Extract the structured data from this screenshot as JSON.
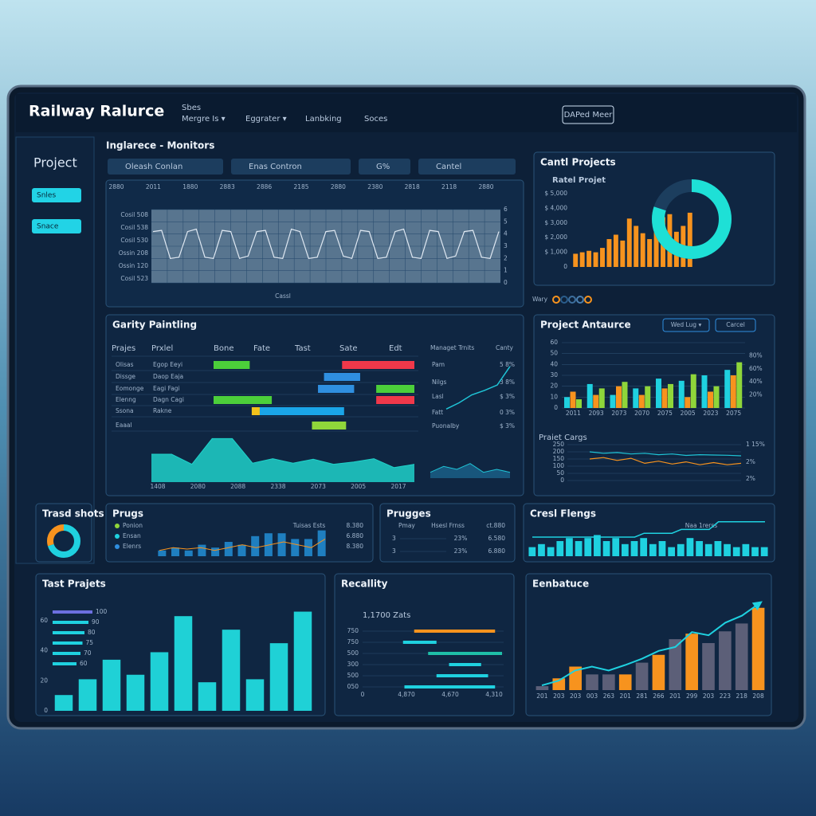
{
  "header": {
    "title": "Railway Ralurce",
    "nav": [
      "Sbes",
      "Mergre Is ▾",
      "Eggrater ▾",
      "Lanbking",
      "Soces"
    ],
    "button": "DAPed Meer"
  },
  "sidebar": {
    "title": "Project",
    "items": [
      "Snles",
      "Snace"
    ]
  },
  "monitors": {
    "title": "Inglarece - Monitors",
    "controls": [
      "Oleash Conlan",
      "Enas Contron",
      "G%",
      "Cantel"
    ],
    "top_labels": [
      "2880",
      "2011",
      "1880",
      "2883",
      "2886",
      "2185",
      "2880",
      "2380",
      "2818",
      "2118",
      "2880"
    ],
    "row_labels": [
      "Cosil 508",
      "Cosil 538",
      "Cosil 530",
      "Ossin 208",
      "Ossin 120",
      "Cosil 523"
    ],
    "x_label": "Cassl",
    "ylim": [
      0,
      6
    ],
    "yticks": [
      0,
      1,
      2,
      3,
      4,
      5,
      6
    ],
    "color": "#dfe8f2",
    "values": [
      4.2,
      4.3,
      2.0,
      2.1,
      4.2,
      4.4,
      2.1,
      2.0,
      4.3,
      4.2,
      2.0,
      2.2,
      4.2,
      4.3,
      2.1,
      2.0,
      4.4,
      4.2,
      2.0,
      2.1,
      4.2,
      4.3,
      2.2,
      2.0,
      4.3,
      4.2,
      2.0,
      2.1,
      4.2,
      4.4,
      2.1,
      2.0,
      4.3,
      4.2,
      2.0,
      2.2,
      4.2,
      4.3,
      2.1,
      2.0,
      4.2
    ]
  },
  "projects": {
    "title": "Cantl Projects",
    "subtitle": "Ratel Projet",
    "color": "#f7931e",
    "ylim": [
      0,
      5000
    ],
    "yticks": [
      0,
      {
        "value": 1000,
        "label": "$ 1,000"
      },
      {
        "value": 2000,
        "label": "$ 2,000"
      },
      {
        "value": 3000,
        "label": "$ 3,000"
      },
      {
        "value": 4000,
        "label": "$ 4,000"
      },
      {
        "value": 5000,
        "label": "$ 5,000"
      }
    ],
    "values": [
      900,
      1000,
      1100,
      1000,
      1300,
      1900,
      2200,
      1800,
      3300,
      2800,
      2300,
      1900,
      3100,
      3400,
      3600,
      2400,
      2800,
      3700
    ],
    "donut": {
      "value": 80,
      "color": "#1ee0d6",
      "track": "#1c3e5e"
    },
    "legend": {
      "label": "Wary",
      "colors": [
        "#f7931e",
        "#2a5d8c",
        "#3d6f9e",
        "#4a7fb0",
        "#f7931e"
      ]
    }
  },
  "gantt": {
    "title": "Garity Paintling",
    "columns": [
      "Prajes",
      "Prxlel",
      "Bone",
      "Fate",
      "Tast",
      "Sate",
      "Edt"
    ],
    "xlim": [
      0,
      10
    ],
    "rows": [
      {
        "name": "Olisas",
        "task": "Egop Eeyi",
        "bars": [
          {
            "start": 0,
            "end": 1.8,
            "color": "#4ccf3a"
          },
          {
            "start": 6.4,
            "end": 10,
            "color": "#f0384a"
          }
        ]
      },
      {
        "name": "Dissge",
        "task": "Daop Eaja",
        "bars": [
          {
            "start": 5.5,
            "end": 7.3,
            "color": "#2f8fe0"
          }
        ]
      },
      {
        "name": "Eomonge",
        "task": "Eagi Fagi",
        "bars": [
          {
            "start": 5.2,
            "end": 7.0,
            "color": "#2f8fe0"
          },
          {
            "start": 8.1,
            "end": 10,
            "color": "#4ccf3a"
          }
        ]
      },
      {
        "name": "Elenng",
        "task": "Dagn Cagi",
        "bars": [
          {
            "start": 0,
            "end": 2.9,
            "color": "#4ccf3a"
          },
          {
            "start": 8.1,
            "end": 10,
            "color": "#f0384a"
          }
        ]
      },
      {
        "name": "Ssona",
        "task": "Rakne",
        "bars": [
          {
            "start": 1.9,
            "end": 2.3,
            "color": "#f2c21b"
          },
          {
            "start": 2.3,
            "end": 6.5,
            "color": "#1aa5e8"
          }
        ]
      },
      {
        "name": "Eaaal",
        "bars": [
          {
            "start": 4.9,
            "end": 6.6,
            "color": "#8fd63a"
          }
        ]
      }
    ],
    "area": {
      "color": "#1fd1c9",
      "ylim": [
        0,
        10
      ],
      "values": [
        5,
        5,
        3.2,
        7.8,
        7.8,
        3.4,
        4.2,
        3.4,
        4.1,
        3.2,
        3.6,
        4.2,
        2.6,
        3.2
      ],
      "x_labels": [
        "1408",
        "2080",
        "2088",
        "2338",
        "2073",
        "2005",
        "2017"
      ]
    }
  },
  "trends": {
    "title": "Managet Trnits",
    "extra": "Canty",
    "rows": [
      {
        "name": "Pam",
        "value": "5 8%"
      },
      {
        "name": "Nilgs",
        "value": "3 8%"
      },
      {
        "name": "Lasl",
        "value": "$ 3%"
      },
      {
        "name": "Fatt",
        "value": "0 3%"
      },
      {
        "name": "Puonalby",
        "value": "$ 3%"
      }
    ],
    "line": {
      "color": "#1fc4d6",
      "ylim": [
        0,
        7
      ],
      "values": [
        1.5,
        2.2,
        3.1,
        3.6,
        4.2,
        6.3
      ]
    },
    "mini": {
      "color": "#1fc4d6",
      "ylim": [
        0,
        6
      ],
      "values": [
        2,
        4,
        3,
        5,
        2,
        3,
        2
      ]
    }
  },
  "antaurce": {
    "title": "Project Antaurce",
    "controls": [
      "Wed Lug ▾",
      "Carcel"
    ],
    "categories": [
      "2011",
      "2093",
      "2073",
      "2070",
      "2075",
      "2005",
      "2023",
      "2075"
    ],
    "ylim": [
      0,
      60
    ],
    "yticks": [
      0,
      10,
      20,
      30,
      40,
      50,
      60
    ],
    "y2lim": [
      0,
      100
    ],
    "y2ticks": [
      {
        "value": 20,
        "label": "20%"
      },
      {
        "value": 40,
        "label": "40%"
      },
      {
        "value": 60,
        "label": "60%"
      },
      {
        "value": 80,
        "label": "80%"
      }
    ],
    "series": [
      {
        "color": "#1fd1e0",
        "values": [
          10,
          22,
          12,
          18,
          27,
          25,
          30,
          35
        ]
      },
      {
        "color": "#f7931e",
        "values": [
          15,
          12,
          20,
          12,
          18,
          10,
          15,
          30
        ]
      },
      {
        "color": "#8fd63a",
        "values": [
          8,
          18,
          24,
          20,
          22,
          31,
          20,
          42
        ]
      }
    ]
  },
  "cargs": {
    "title": "Praiet Cargs",
    "ylim": [
      0,
      250
    ],
    "yticks": [
      0,
      50,
      100,
      150,
      200,
      250
    ],
    "right_labels": [
      "1 15%",
      "2%",
      "2%"
    ],
    "lines": [
      {
        "color": "#f7931e",
        "values": [
          150,
          160,
          140,
          155,
          120,
          135,
          115,
          130,
          110,
          125,
          110,
          120
        ]
      },
      {
        "color": "#1fc4d6",
        "values": [
          200,
          190,
          195,
          185,
          190,
          180,
          185,
          175,
          180,
          178,
          176,
          172
        ]
      }
    ]
  },
  "shots": {
    "title": "Trasd shots",
    "value": 70,
    "colors": [
      "#1fd1e0",
      "#f7931e"
    ]
  },
  "prugs": {
    "title": "Prugs",
    "legend": [
      {
        "label": "Ponion",
        "color": "#8fd63a"
      },
      {
        "label": "Ensan",
        "color": "#1fd1e0"
      },
      {
        "label": "Elenrs",
        "color": "#2f8fe0"
      }
    ],
    "note": "Tuisas Ests",
    "figures": [
      "8.380",
      "6.880",
      "8.380"
    ],
    "ylim": [
      0,
      10
    ],
    "bars": [
      2,
      3,
      2,
      4,
      3,
      5,
      4,
      7,
      8,
      8,
      6,
      6,
      9
    ],
    "line": [
      2,
      3,
      2.5,
      3,
      2,
      3,
      4,
      3,
      4,
      5,
      4,
      3,
      6
    ],
    "bar_color": "#1f7fc0",
    "line_color": "#f7931e"
  },
  "prugges": {
    "title": "Prugges",
    "header": [
      "Pmay",
      "Hsesl Frnss",
      "ct.880"
    ],
    "rows": [
      [
        "3",
        "23%",
        "6.580"
      ],
      [
        "3",
        "23%",
        "6.880"
      ]
    ],
    "line_color": "#f7931e"
  },
  "flengs": {
    "title": "Cresl Flengs",
    "note": "Naa 1rerss",
    "ylim": [
      0,
      10
    ],
    "color": "#1fd1e0",
    "bars": [
      3,
      4,
      3,
      5,
      6,
      5,
      6,
      7,
      5,
      6,
      4,
      5,
      6,
      4,
      5,
      3,
      4,
      6,
      5,
      4,
      5,
      4,
      3,
      4,
      3,
      3
    ],
    "line": [
      5,
      5,
      5,
      5,
      5,
      5,
      5,
      5,
      5,
      5,
      5,
      5,
      6,
      6,
      6,
      6,
      7,
      7,
      7,
      7,
      9,
      9,
      9,
      9,
      9,
      9
    ]
  },
  "test": {
    "title": "Tast Prajets",
    "ylim": [
      0,
      70
    ],
    "yticks": [
      0,
      20,
      40,
      60
    ],
    "color": "#1fd1d6",
    "values": [
      10.5,
      21,
      34,
      24,
      39,
      63,
      19,
      54,
      21,
      45,
      66
    ],
    "mini": {
      "values": [
        100,
        90,
        80,
        75,
        70,
        60
      ],
      "colors": [
        "#6c6fe0",
        "#1fd1e0",
        "#1fd1e0",
        "#1fd1e0",
        "#1fd1e0",
        "#1fd1e0"
      ]
    }
  },
  "recallity": {
    "title": "Recallity",
    "subtitle": "1,1700 Zats",
    "xlim": [
      0,
      10
    ],
    "x_labels": [
      "0",
      "4,870",
      "4,670",
      "4,310"
    ],
    "rows": [
      {
        "label": "750",
        "start": 3.7,
        "end": 9.5,
        "color": "#f7931e"
      },
      {
        "label": "750",
        "start": 2.9,
        "end": 5.3,
        "color": "#1fd1e0"
      },
      {
        "label": "500",
        "start": 4.7,
        "end": 10,
        "color": "#1fbfa8"
      },
      {
        "label": "300",
        "start": 6.2,
        "end": 8.5,
        "color": "#1fd1e0"
      },
      {
        "label": "500",
        "start": 5.3,
        "end": 9,
        "color": "#1fd1e0"
      },
      {
        "label": "050",
        "start": 3,
        "end": 9.5,
        "color": "#1fd1e0"
      }
    ]
  },
  "eenbatuce": {
    "title": "Eenbatuce",
    "categories": [
      "201",
      "203",
      "203",
      "003",
      "263",
      "201",
      "281",
      "266",
      "201",
      "299",
      "203",
      "223",
      "218",
      "208"
    ],
    "ylim": [
      0,
      12
    ],
    "values": [
      0.5,
      1.5,
      3,
      2,
      2,
      2,
      3.5,
      4.5,
      6.5,
      7.2,
      6,
      7.5,
      8.5,
      10.5
    ],
    "colors": [
      "#5c5f78",
      "#f7931e",
      "#f7931e",
      "#5c5f78",
      "#5c5f78",
      "#f7931e",
      "#5c5f78",
      "#f7931e",
      "#5c5f78",
      "#f7931e",
      "#5c5f78",
      "#5c5f78",
      "#5c5f78",
      "#f7931e"
    ],
    "line": {
      "color": "#1fd1e0",
      "values": [
        0.6,
        1.2,
        2.5,
        3,
        2.5,
        3.2,
        4,
        5,
        5.5,
        7.4,
        7,
        8.6,
        9.5,
        11
      ]
    }
  }
}
